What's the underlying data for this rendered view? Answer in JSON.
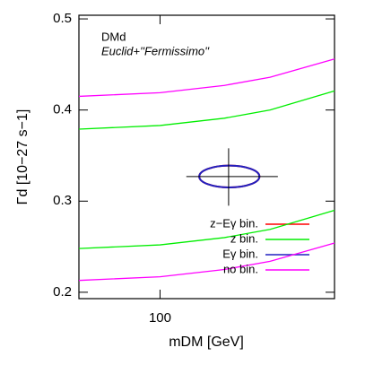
{
  "chart_data": {
    "type": "band-lines",
    "annotations": [
      "DMd",
      "Euclid+''Fermissimo''"
    ],
    "x_label": "mDM [GeV]",
    "y_label": "Γd [10−27 s−1]",
    "xlim": [
      60,
      300
    ],
    "xticks": [
      100
    ],
    "x_log": true,
    "ylim": [
      0.193,
      0.504
    ],
    "yticks": [
      0.2,
      0.3,
      0.4,
      0.5
    ],
    "x": [
      60,
      100,
      150,
      200,
      300
    ],
    "series": [
      {
        "name": "z−Eγ bin.",
        "color": "#ff0000",
        "x_range": [
          128,
          187
        ],
        "y_range": [
          0.315,
          0.339
        ]
      },
      {
        "name": "z bin.",
        "color": "#00ee00",
        "upper": [
          0.379,
          0.383,
          0.391,
          0.4,
          0.421
        ],
        "lower": [
          0.248,
          0.252,
          0.26,
          0.269,
          0.29
        ]
      },
      {
        "name": "Eγ bin.",
        "color": "#2020c0",
        "x_range": [
          128,
          187
        ],
        "y_range": [
          0.315,
          0.339
        ]
      },
      {
        "name": "no bin.",
        "color": "#ff00ff",
        "upper": [
          0.415,
          0.419,
          0.427,
          0.436,
          0.456
        ],
        "lower": [
          0.213,
          0.217,
          0.225,
          0.234,
          0.254
        ]
      }
    ],
    "fiducial": {
      "x": 154,
      "y": 0.327,
      "xerr": [
        118,
        210
      ],
      "yerr": [
        0.295,
        0.358
      ]
    }
  }
}
